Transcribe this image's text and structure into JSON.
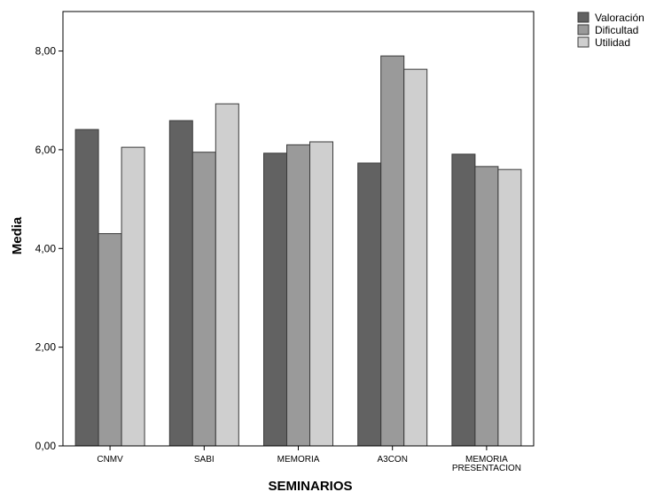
{
  "chart_data": {
    "type": "bar",
    "title": "",
    "xlabel": "SEMINARIOS",
    "ylabel": "Media",
    "ylim": [
      0,
      8.8
    ],
    "yticks": [
      0,
      2,
      4,
      6,
      8
    ],
    "ytick_labels": [
      "0,00",
      "2,00",
      "4,00",
      "6,00",
      "8,00"
    ],
    "grid": false,
    "legend_position": "top-right",
    "categories": [
      [
        "CNMV"
      ],
      [
        "SABI"
      ],
      [
        "MEMORIA"
      ],
      [
        "A3CON"
      ],
      [
        "MEMORIA",
        "PRESENTACION"
      ]
    ],
    "series": [
      {
        "name": "Valoración",
        "color": "#626262",
        "values": [
          6.41,
          6.59,
          5.93,
          5.73,
          5.91
        ]
      },
      {
        "name": "Dificultad",
        "color": "#9a9a9a",
        "values": [
          4.3,
          5.95,
          6.1,
          7.9,
          5.66
        ]
      },
      {
        "name": "Utilidad",
        "color": "#cfcfcf",
        "values": [
          6.05,
          6.93,
          6.16,
          7.63,
          5.6
        ]
      }
    ]
  }
}
